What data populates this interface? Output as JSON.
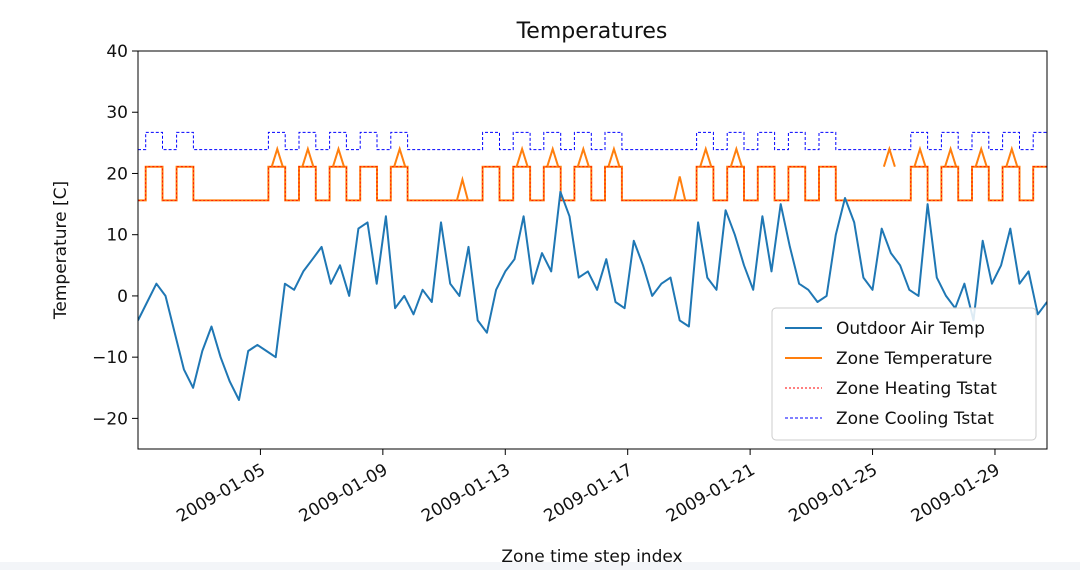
{
  "chart_data": {
    "type": "line",
    "title": "Temperatures",
    "xlabel": "Zone time step index",
    "ylabel": "Temperature [C]",
    "ylim": [
      -25,
      40
    ],
    "yticks": [
      -20,
      -10,
      0,
      10,
      20,
      30,
      40
    ],
    "ytick_labels": [
      "−20",
      "−10",
      "0",
      "10",
      "20",
      "30",
      "40"
    ],
    "x_start": "2009-01-01",
    "x_end": "2009-01-30",
    "xlim_days": [
      1.0,
      30.7
    ],
    "xtick_days": [
      5,
      9,
      13,
      17,
      21,
      25,
      29
    ],
    "xtick_labels": [
      "2009-01-05",
      "2009-01-09",
      "2009-01-13",
      "2009-01-17",
      "2009-01-21",
      "2009-01-25",
      "2009-01-29"
    ],
    "legend_position": "lower-right",
    "series": [
      {
        "name": "Outdoor Air Temp",
        "color": "#1f77b4",
        "style": "solid",
        "x": [
          1.0,
          1.3,
          1.6,
          1.9,
          2.2,
          2.5,
          2.8,
          3.1,
          3.4,
          3.7,
          4.0,
          4.3,
          4.6,
          4.9,
          5.2,
          5.5,
          5.8,
          6.1,
          6.4,
          6.7,
          7.0,
          7.3,
          7.6,
          7.9,
          8.2,
          8.5,
          8.8,
          9.1,
          9.4,
          9.7,
          10.0,
          10.3,
          10.6,
          10.9,
          11.2,
          11.5,
          11.8,
          12.1,
          12.4,
          12.7,
          13.0,
          13.3,
          13.6,
          13.9,
          14.2,
          14.5,
          14.8,
          15.1,
          15.4,
          15.7,
          16.0,
          16.3,
          16.6,
          16.9,
          17.2,
          17.5,
          17.8,
          18.1,
          18.4,
          18.7,
          19.0,
          19.3,
          19.6,
          19.9,
          20.2,
          20.5,
          20.8,
          21.1,
          21.4,
          21.7,
          22.0,
          22.3,
          22.6,
          22.9,
          23.2,
          23.5,
          23.8,
          24.1,
          24.4,
          24.7,
          25.0,
          25.3,
          25.6,
          25.9,
          26.2,
          26.5,
          26.8,
          27.1,
          27.4,
          27.7,
          28.0,
          28.3,
          28.6,
          28.9,
          29.2,
          29.5,
          29.8,
          30.1,
          30.4,
          30.7
        ],
        "values": [
          -4,
          -1,
          2,
          0,
          -6,
          -12,
          -15,
          -9,
          -5,
          -10,
          -14,
          -17,
          -9,
          -8,
          -9,
          -10,
          2,
          1,
          4,
          6,
          8,
          2,
          5,
          0,
          11,
          12,
          2,
          13,
          -2,
          0,
          -3,
          1,
          -1,
          12,
          2,
          0,
          8,
          -4,
          -6,
          1,
          4,
          6,
          13,
          2,
          7,
          4,
          17,
          13,
          3,
          4,
          1,
          6,
          -1,
          -2,
          9,
          5,
          0,
          2,
          3,
          -4,
          -5,
          12,
          3,
          1,
          14,
          10,
          5,
          1,
          13,
          4,
          15,
          8,
          2,
          1,
          -1,
          0,
          10,
          16,
          12,
          3,
          1,
          11,
          7,
          5,
          1,
          0,
          15,
          3,
          0,
          -2,
          2,
          -4,
          9,
          2,
          5,
          11,
          2,
          4,
          -3,
          -1
        ],
        "note": "approximate read-off; line continues behind legend"
      },
      {
        "name": "Zone Temperature",
        "color": "#ff7f0e",
        "style": "solid",
        "setback_value": 15.6,
        "occupied_value": 21.1,
        "comfort_peaks": 24
      },
      {
        "name": "Zone Heating Tstat",
        "color": "#ff0000",
        "style": "dotted",
        "setback_value": 15.6,
        "occupied_value": 21.1
      },
      {
        "name": "Zone Cooling Tstat",
        "color": "#0000ff",
        "style": "dashed",
        "setback_value": 23.9,
        "occupied_value": 26.7
      }
    ],
    "occupied_day_pattern": "weekday occupied periods; weekends on Jan 3-4, 10-11, 17-18, 24-25 setback"
  }
}
